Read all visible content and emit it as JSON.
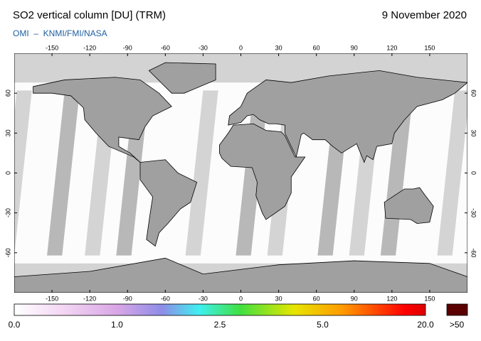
{
  "header": {
    "title": "SO2 vertical column [DU] (TRM)",
    "date": "9 November 2020",
    "credit": "OMI  –  KNMI/FMI/NASA"
  },
  "map": {
    "xlim": [
      -180,
      180
    ],
    "ylim": [
      -90,
      90
    ],
    "lon_ticks": [
      -150,
      -120,
      -90,
      -60,
      -30,
      0,
      30,
      60,
      90,
      120,
      150
    ],
    "lat_ticks": [
      60,
      30,
      0,
      -30,
      -60
    ]
  },
  "colorbar": {
    "labels": [
      "0.0",
      "1.0",
      "2.5",
      "5.0",
      "20.0"
    ],
    "overflow_label": ">50"
  }
}
